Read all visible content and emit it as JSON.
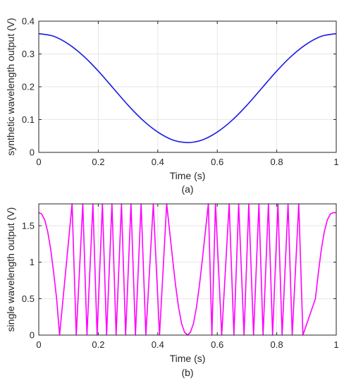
{
  "chart_data": [
    {
      "type": "line",
      "panel_label": "(a)",
      "xlabel": "Time (s)",
      "ylabel": "synthetic wavelength output (V)",
      "xlim": [
        0,
        1
      ],
      "ylim": [
        0,
        0.4
      ],
      "xticks": [
        0,
        0.2,
        0.4,
        0.6,
        0.8,
        1
      ],
      "xtick_labels": [
        "0",
        "0.2",
        "0.4",
        "0.6",
        "0.8",
        "1"
      ],
      "yticks": [
        0,
        0.1,
        0.2,
        0.3,
        0.4
      ],
      "ytick_labels": [
        "0",
        "0.1",
        "0.2",
        "0.3",
        "0.4"
      ],
      "grid": true,
      "series": [
        {
          "color": "#1a1ae6",
          "x": [
            0,
            0.05,
            0.1,
            0.15,
            0.2,
            0.25,
            0.3,
            0.35,
            0.4,
            0.45,
            0.5,
            0.55,
            0.6,
            0.65,
            0.7,
            0.75,
            0.8,
            0.85,
            0.9,
            0.95,
            1
          ],
          "y": [
            0.362,
            0.354,
            0.33,
            0.294,
            0.248,
            0.196,
            0.144,
            0.098,
            0.062,
            0.038,
            0.03,
            0.038,
            0.062,
            0.098,
            0.144,
            0.196,
            0.248,
            0.294,
            0.33,
            0.354,
            0.362
          ]
        }
      ]
    },
    {
      "type": "line",
      "panel_label": "(b)",
      "xlabel": "Time (s)",
      "ylabel": "single wavelength output (V)",
      "xlim": [
        0,
        1
      ],
      "ylim": [
        0,
        1.8
      ],
      "xticks": [
        0,
        0.2,
        0.4,
        0.6,
        0.8,
        1
      ],
      "xtick_labels": [
        "0",
        "0.2",
        "0.4",
        "0.6",
        "0.8",
        "1"
      ],
      "yticks": [
        0,
        0.5,
        1,
        1.5
      ],
      "ytick_labels": [
        "0",
        "0.5",
        "1",
        "1.5"
      ],
      "grid": true,
      "series": [
        {
          "color": "#ff00ff",
          "x": [
            0,
            0.01,
            0.02,
            0.03,
            0.04,
            0.05,
            0.06,
            0.07,
            0.112,
            0.126,
            0.148,
            0.162,
            0.182,
            0.196,
            0.214,
            0.228,
            0.246,
            0.26,
            0.278,
            0.292,
            0.31,
            0.325,
            0.344,
            0.36,
            0.385,
            0.406,
            0.43,
            0.44,
            0.45,
            0.46,
            0.47,
            0.48,
            0.49,
            0.5,
            0.51,
            0.52,
            0.53,
            0.54,
            0.55,
            0.56,
            0.57,
            0.582,
            0.594,
            0.615,
            0.64,
            0.656,
            0.672,
            0.69,
            0.706,
            0.722,
            0.74,
            0.754,
            0.772,
            0.786,
            0.804,
            0.818,
            0.838,
            0.852,
            0.874,
            0.888,
            0.93,
            0.94,
            0.95,
            0.96,
            0.97,
            0.98,
            0.99,
            1
          ],
          "y": [
            1.68,
            1.66,
            1.58,
            1.42,
            1.18,
            0.86,
            0.5,
            0.0,
            1.8,
            0.0,
            1.8,
            0.0,
            1.8,
            0.0,
            1.8,
            0.0,
            1.8,
            0.0,
            1.8,
            0.0,
            1.8,
            0.0,
            1.8,
            0.0,
            1.8,
            0.0,
            1.8,
            1.42,
            1.04,
            0.68,
            0.38,
            0.16,
            0.04,
            0.0,
            0.04,
            0.16,
            0.38,
            0.68,
            1.04,
            1.42,
            1.8,
            0.0,
            1.8,
            0.0,
            1.8,
            0.0,
            1.8,
            0.0,
            1.8,
            0.0,
            1.8,
            0.0,
            1.8,
            0.0,
            1.8,
            0.0,
            1.8,
            0.0,
            1.8,
            0.0,
            0.5,
            0.86,
            1.18,
            1.42,
            1.58,
            1.66,
            1.68,
            1.68
          ]
        }
      ]
    }
  ]
}
